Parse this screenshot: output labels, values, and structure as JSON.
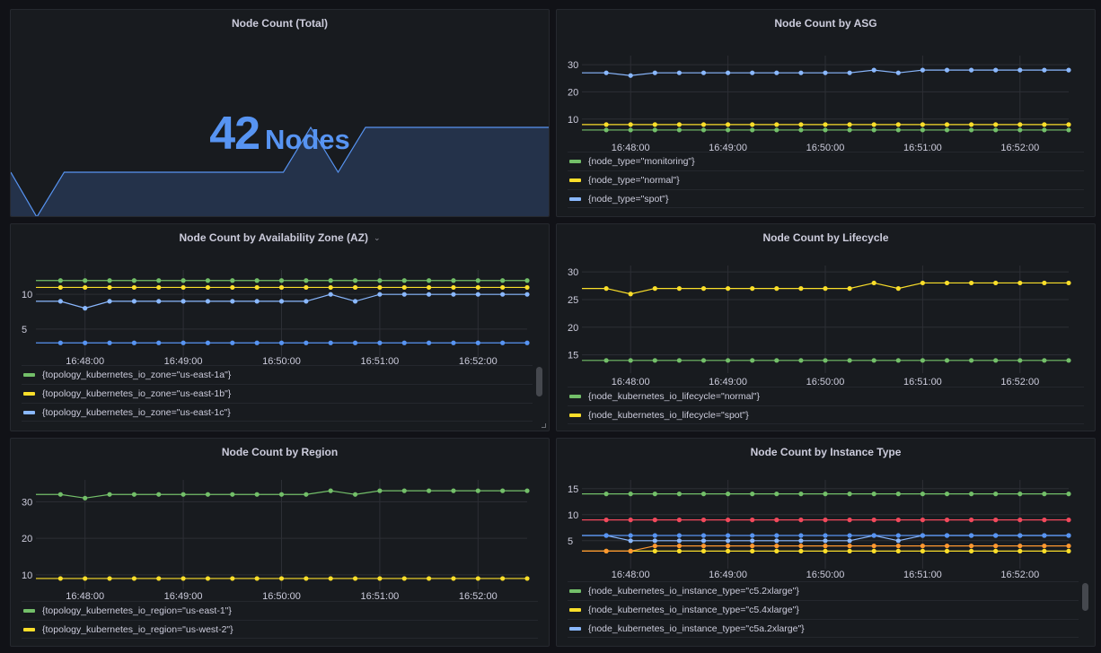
{
  "dashboard": {
    "background": "#111217",
    "panel_background": "#181b1f"
  },
  "stat_panel": {
    "title": "Node Count (Total)",
    "value": "42",
    "unit": "Nodes",
    "color": "#5794f2",
    "sparkline": [
      41,
      40,
      41,
      41,
      41,
      41,
      41,
      41,
      41,
      41,
      41,
      42,
      41,
      42,
      42,
      42,
      42,
      42,
      42,
      42
    ]
  },
  "chart_data": [
    {
      "id": "asg",
      "type": "line",
      "title": "Node Count by ASG",
      "x": [
        "16:47:45",
        "16:48:00",
        "16:48:15",
        "16:48:30",
        "16:48:45",
        "16:49:00",
        "16:49:15",
        "16:49:30",
        "16:49:45",
        "16:50:00",
        "16:50:15",
        "16:50:30",
        "16:50:45",
        "16:51:00",
        "16:51:15",
        "16:51:30",
        "16:51:45",
        "16:52:00",
        "16:52:15",
        "16:52:30"
      ],
      "xticks": [
        "16:48:00",
        "16:49:00",
        "16:50:00",
        "16:51:00",
        "16:52:00"
      ],
      "yticks": [
        10,
        20,
        30
      ],
      "ylim": [
        4,
        32
      ],
      "grid": true,
      "legend_position": "bottom",
      "series": [
        {
          "name": "{node_type=\"monitoring\"}",
          "color": "#73bf69",
          "values": [
            6,
            6,
            6,
            6,
            6,
            6,
            6,
            6,
            6,
            6,
            6,
            6,
            6,
            6,
            6,
            6,
            6,
            6,
            6,
            6
          ]
        },
        {
          "name": "{node_type=\"normal\"}",
          "color": "#fade2a",
          "values": [
            8,
            8,
            8,
            8,
            8,
            8,
            8,
            8,
            8,
            8,
            8,
            8,
            8,
            8,
            8,
            8,
            8,
            8,
            8,
            8
          ]
        },
        {
          "name": "{node_type=\"spot\"}",
          "color": "#8ab8ff",
          "values": [
            27,
            26,
            27,
            27,
            27,
            27,
            27,
            27,
            27,
            27,
            27,
            28,
            27,
            28,
            28,
            28,
            28,
            28,
            28,
            28
          ]
        }
      ]
    },
    {
      "id": "az",
      "type": "line",
      "title": "Node Count by Availability Zone (AZ)",
      "x": [
        "16:47:45",
        "16:48:00",
        "16:48:15",
        "16:48:30",
        "16:48:45",
        "16:49:00",
        "16:49:15",
        "16:49:30",
        "16:49:45",
        "16:50:00",
        "16:50:15",
        "16:50:30",
        "16:50:45",
        "16:51:00",
        "16:51:15",
        "16:51:30",
        "16:51:45",
        "16:52:00",
        "16:52:15",
        "16:52:30"
      ],
      "xticks": [
        "16:48:00",
        "16:49:00",
        "16:50:00",
        "16:51:00",
        "16:52:00"
      ],
      "yticks": [
        5,
        10
      ],
      "ylim": [
        2,
        13
      ],
      "grid": true,
      "legend_position": "bottom",
      "series": [
        {
          "name": "{topology_kubernetes_io_zone=\"us-east-1a\"}",
          "color": "#73bf69",
          "values": [
            12,
            12,
            12,
            12,
            12,
            12,
            12,
            12,
            12,
            12,
            12,
            12,
            12,
            12,
            12,
            12,
            12,
            12,
            12,
            12
          ]
        },
        {
          "name": "{topology_kubernetes_io_zone=\"us-east-1b\"}",
          "color": "#fade2a",
          "values": [
            11,
            11,
            11,
            11,
            11,
            11,
            11,
            11,
            11,
            11,
            11,
            11,
            11,
            11,
            11,
            11,
            11,
            11,
            11,
            11
          ]
        },
        {
          "name": "{topology_kubernetes_io_zone=\"us-east-1c\"}",
          "color": "#8ab8ff",
          "values": [
            9,
            8,
            9,
            9,
            9,
            9,
            9,
            9,
            9,
            9,
            9,
            10,
            9,
            10,
            10,
            10,
            10,
            10,
            10,
            10
          ]
        },
        {
          "name": "",
          "color": "#5794f2",
          "hidden_in_legend": true,
          "values": [
            3,
            3,
            3,
            3,
            3,
            3,
            3,
            3,
            3,
            3,
            3,
            3,
            3,
            3,
            3,
            3,
            3,
            3,
            3,
            3
          ]
        }
      ]
    },
    {
      "id": "lifecycle",
      "type": "line",
      "title": "Node Count by Lifecycle",
      "x": [
        "16:47:45",
        "16:48:00",
        "16:48:15",
        "16:48:30",
        "16:48:45",
        "16:49:00",
        "16:49:15",
        "16:49:30",
        "16:49:45",
        "16:50:00",
        "16:50:15",
        "16:50:30",
        "16:50:45",
        "16:51:00",
        "16:51:15",
        "16:51:30",
        "16:51:45",
        "16:52:00",
        "16:52:15",
        "16:52:30"
      ],
      "xticks": [
        "16:48:00",
        "16:49:00",
        "16:50:00",
        "16:51:00",
        "16:52:00"
      ],
      "yticks": [
        15,
        20,
        25,
        30
      ],
      "ylim": [
        13,
        30.5
      ],
      "grid": true,
      "legend_position": "bottom",
      "series": [
        {
          "name": "{node_kubernetes_io_lifecycle=\"normal\"}",
          "color": "#73bf69",
          "values": [
            14,
            14,
            14,
            14,
            14,
            14,
            14,
            14,
            14,
            14,
            14,
            14,
            14,
            14,
            14,
            14,
            14,
            14,
            14,
            14
          ]
        },
        {
          "name": "{node_kubernetes_io_lifecycle=\"spot\"}",
          "color": "#fade2a",
          "values": [
            27,
            26,
            27,
            27,
            27,
            27,
            27,
            27,
            27,
            27,
            27,
            28,
            27,
            28,
            28,
            28,
            28,
            28,
            28,
            28
          ]
        }
      ]
    },
    {
      "id": "region",
      "type": "line",
      "title": "Node Count by Region",
      "x": [
        "16:47:45",
        "16:48:00",
        "16:48:15",
        "16:48:30",
        "16:48:45",
        "16:49:00",
        "16:49:15",
        "16:49:30",
        "16:49:45",
        "16:50:00",
        "16:50:15",
        "16:50:30",
        "16:50:45",
        "16:51:00",
        "16:51:15",
        "16:51:30",
        "16:51:45",
        "16:52:00",
        "16:52:15",
        "16:52:30"
      ],
      "xticks": [
        "16:48:00",
        "16:49:00",
        "16:50:00",
        "16:51:00",
        "16:52:00"
      ],
      "yticks": [
        10,
        20,
        30
      ],
      "ylim": [
        8,
        35
      ],
      "grid": true,
      "legend_position": "bottom",
      "series": [
        {
          "name": "{topology_kubernetes_io_region=\"us-east-1\"}",
          "color": "#73bf69",
          "values": [
            32,
            31,
            32,
            32,
            32,
            32,
            32,
            32,
            32,
            32,
            32,
            33,
            32,
            33,
            33,
            33,
            33,
            33,
            33,
            33
          ]
        },
        {
          "name": "{topology_kubernetes_io_region=\"us-west-2\"}",
          "color": "#fade2a",
          "values": [
            9,
            9,
            9,
            9,
            9,
            9,
            9,
            9,
            9,
            9,
            9,
            9,
            9,
            9,
            9,
            9,
            9,
            9,
            9,
            9
          ]
        }
      ]
    },
    {
      "id": "instance",
      "type": "line",
      "title": "Node Count by Instance Type",
      "x": [
        "16:47:45",
        "16:48:00",
        "16:48:15",
        "16:48:30",
        "16:48:45",
        "16:49:00",
        "16:49:15",
        "16:49:30",
        "16:49:45",
        "16:50:00",
        "16:50:15",
        "16:50:30",
        "16:50:45",
        "16:51:00",
        "16:51:15",
        "16:51:30",
        "16:51:45",
        "16:52:00",
        "16:52:15",
        "16:52:30"
      ],
      "xticks": [
        "16:48:00",
        "16:49:00",
        "16:50:00",
        "16:51:00",
        "16:52:00"
      ],
      "yticks": [
        5,
        10,
        15
      ],
      "ylim": [
        1,
        16
      ],
      "grid": true,
      "legend_position": "bottom",
      "series": [
        {
          "name": "{node_kubernetes_io_instance_type=\"c5.2xlarge\"}",
          "color": "#73bf69",
          "values": [
            14,
            14,
            14,
            14,
            14,
            14,
            14,
            14,
            14,
            14,
            14,
            14,
            14,
            14,
            14,
            14,
            14,
            14,
            14,
            14
          ]
        },
        {
          "name": "{node_kubernetes_io_instance_type=\"c5.4xlarge\"}",
          "color": "#fade2a",
          "values": [
            3,
            3,
            3,
            3,
            3,
            3,
            3,
            3,
            3,
            3,
            3,
            3,
            3,
            3,
            3,
            3,
            3,
            3,
            3,
            3
          ]
        },
        {
          "name": "{node_kubernetes_io_instance_type=\"c5a.2xlarge\"}",
          "color": "#8ab8ff",
          "values": [
            6,
            5,
            5,
            5,
            5,
            5,
            5,
            5,
            5,
            5,
            5,
            6,
            5,
            6,
            6,
            6,
            6,
            6,
            6,
            6
          ]
        },
        {
          "name": "",
          "color": "#f2495c",
          "hidden_in_legend": true,
          "values": [
            9,
            9,
            9,
            9,
            9,
            9,
            9,
            9,
            9,
            9,
            9,
            9,
            9,
            9,
            9,
            9,
            9,
            9,
            9,
            9
          ]
        },
        {
          "name": "",
          "color": "#5794f2",
          "hidden_in_legend": true,
          "values": [
            6,
            6,
            6,
            6,
            6,
            6,
            6,
            6,
            6,
            6,
            6,
            6,
            6,
            6,
            6,
            6,
            6,
            6,
            6,
            6
          ]
        },
        {
          "name": "",
          "color": "#ff9830",
          "hidden_in_legend": true,
          "values": [
            3,
            3,
            4,
            4,
            4,
            4,
            4,
            4,
            4,
            4,
            4,
            4,
            4,
            4,
            4,
            4,
            4,
            4,
            4,
            4
          ]
        }
      ]
    }
  ]
}
